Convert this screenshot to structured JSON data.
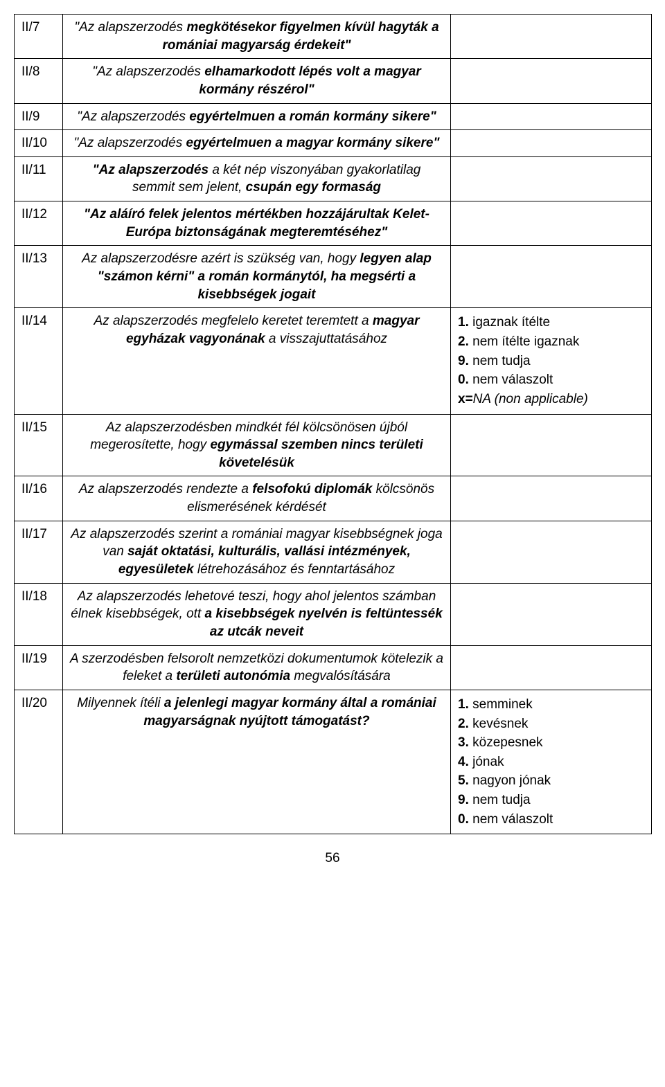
{
  "rows": [
    {
      "code": "II/7",
      "desc_html": "<span class='italic'>\"Az alapszerzodés </span><span class='bolditalic'>megkötésekor figyelmen kívül hagyták a romániai magyarság érdekeit\"</span>",
      "opts_html": ""
    },
    {
      "code": "II/8",
      "desc_html": "<span class='italic'>\"Az alapszerzodés </span><span class='bolditalic'>elhamarkodott lépés volt a magyar kormány részérol\"</span>",
      "opts_html": ""
    },
    {
      "code": "II/9",
      "desc_html": "<span class='italic'>\"Az alapszerzodés </span><span class='bolditalic'>egyértelmuen a román kormány sikere\"</span>",
      "opts_html": ""
    },
    {
      "code": "II/10",
      "desc_html": "<span class='italic'>\"Az alapszerzodés </span><span class='bolditalic'>egyértelmuen a magyar kormány sikere\"</span>",
      "opts_html": ""
    },
    {
      "code": "II/11",
      "desc_html": "<span class='bolditalic'>\"Az alapszerzodés</span><span class='italic'> a két nép viszonyában gyakorlatilag semmit sem jelent, </span><span class='bolditalic'>csupán egy formaság</span>",
      "opts_html": ""
    },
    {
      "code": "II/12",
      "desc_html": "<span class='bolditalic'>\"Az aláíró felek jelentos mértékben hozzájárultak Kelet-Európa biztonságának megteremtéséhez\"</span>",
      "opts_html": ""
    },
    {
      "code": "II/13",
      "desc_html": "<span class='italic'>Az alapszerzodésre azért is szükség van, hogy </span><span class='bolditalic'>legyen alap \"számon  kérni\" a román kormánytól, ha megsérti a kisebbségek jogait</span>",
      "opts_html": ""
    },
    {
      "code": "II/14",
      "desc_html": "<span class='italic'>Az alapszerzodés megfelelo keretet teremtett a </span><span class='bolditalic'>magyar egyházak vagyonának</span><span class='italic'> a visszajuttatásához</span>",
      "opts_html": "<div class='opt-line'><span class='bold'>1.</span> igaznak ítélte</div><div class='opt-line'><span class='bold'>2.</span> nem ítélte igaznak</div><div class='opt-line'><span class='bold'>9.</span> nem tudja</div><div class='opt-line'><span class='bold'>0.</span> nem válaszolt</div><div class='opt-line'><span class='bold'>x=</span><span class='italic'>NA (non applicable)</span></div>"
    },
    {
      "code": "II/15",
      "desc_html": "<span class='italic'>Az alapszerzodésben  mindkét fél kölcsönösen újból megerosítette, hogy </span><span class='bolditalic'>egymással szemben nincs területi követelésük</span>",
      "opts_html": ""
    },
    {
      "code": "II/16",
      "desc_html": "<span class='italic'>Az alapszerzodés rendezte a </span><span class='bolditalic'>felsofokú diplomák</span><span class='italic'> kölcsönös elismerésének kérdését</span>",
      "opts_html": ""
    },
    {
      "code": "II/17",
      "desc_html": "<span class='italic'>Az alapszerzodés szerint a romániai magyar kisebbségnek joga van </span><span class='bolditalic'>saját oktatási, kulturális, vallási intézmények, egyesületek</span><span class='italic'> létrehozásához és fenntartásához</span>",
      "opts_html": ""
    },
    {
      "code": "II/18",
      "desc_html": "<span class='italic'>Az alapszerzodés lehetové teszi, hogy ahol jelentos számban élnek kisebbségek, ott </span><span class='bolditalic'>a kisebbségek nyelvén is feltüntessék az utcák neveit</span>",
      "opts_html": ""
    },
    {
      "code": "II/19",
      "desc_html": "<span class='italic'>A szerzodésben felsorolt nemzetközi dokumentumok kötelezik a feleket a </span><span class='bolditalic'>területi autonómia</span><span class='italic'> megvalósítására</span>",
      "opts_html": ""
    },
    {
      "code": "II/20",
      "desc_html": "<span class='italic'>Milyennek ítéli </span><span class='bolditalic'>a jelenlegi magyar kormány által a romániai magyarságnak nyújtott támogatást?</span>",
      "opts_html": "<div class='opt-line'><span class='bold'>1.</span> semminek</div><div class='opt-line'><span class='bold'>2.</span> kevésnek</div><div class='opt-line'><span class='bold'>3.</span> közepesnek</div><div class='opt-line'><span class='bold'>4.</span> jónak</div><div class='opt-line'><span class='bold'>5.</span> nagyon jónak</div><div class='opt-line'><span class='bold'>9.</span> nem tudja</div><div class='opt-line'><span class='bold'>0.</span> nem válaszolt</div>"
    }
  ],
  "page_number": "56"
}
